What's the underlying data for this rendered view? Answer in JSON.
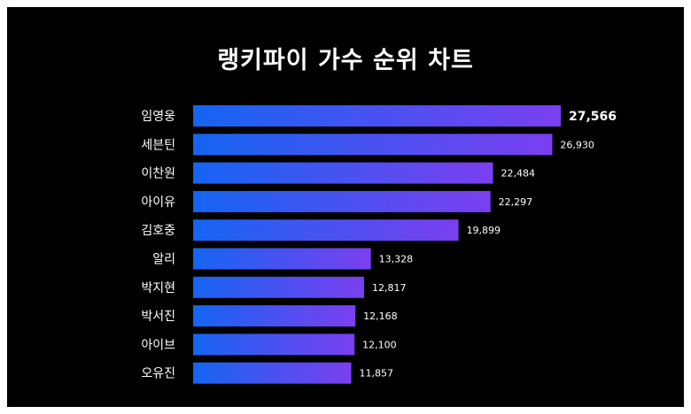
{
  "chart_data": {
    "type": "bar",
    "orientation": "horizontal",
    "title": "랭키파이 가수 순위 차트",
    "categories": [
      "임영웅",
      "세븐틴",
      "이찬원",
      "아이유",
      "김호중",
      "알리",
      "박지현",
      "박서진",
      "아이브",
      "오유진"
    ],
    "values": [
      27566,
      26930,
      22484,
      22297,
      19899,
      13328,
      12817,
      12168,
      12100,
      11857
    ],
    "value_labels": [
      "27,566",
      "26,930",
      "22,484",
      "22,297",
      "19,899",
      "13,328",
      "12,817",
      "12,168",
      "12,100",
      "11,857"
    ],
    "xlabel": "",
    "ylabel": "",
    "grid": false,
    "colors": {
      "gradient_start": "#1565f2",
      "gradient_end": "#7b3ff0",
      "background": "#000000",
      "text": "#ffffff"
    }
  }
}
